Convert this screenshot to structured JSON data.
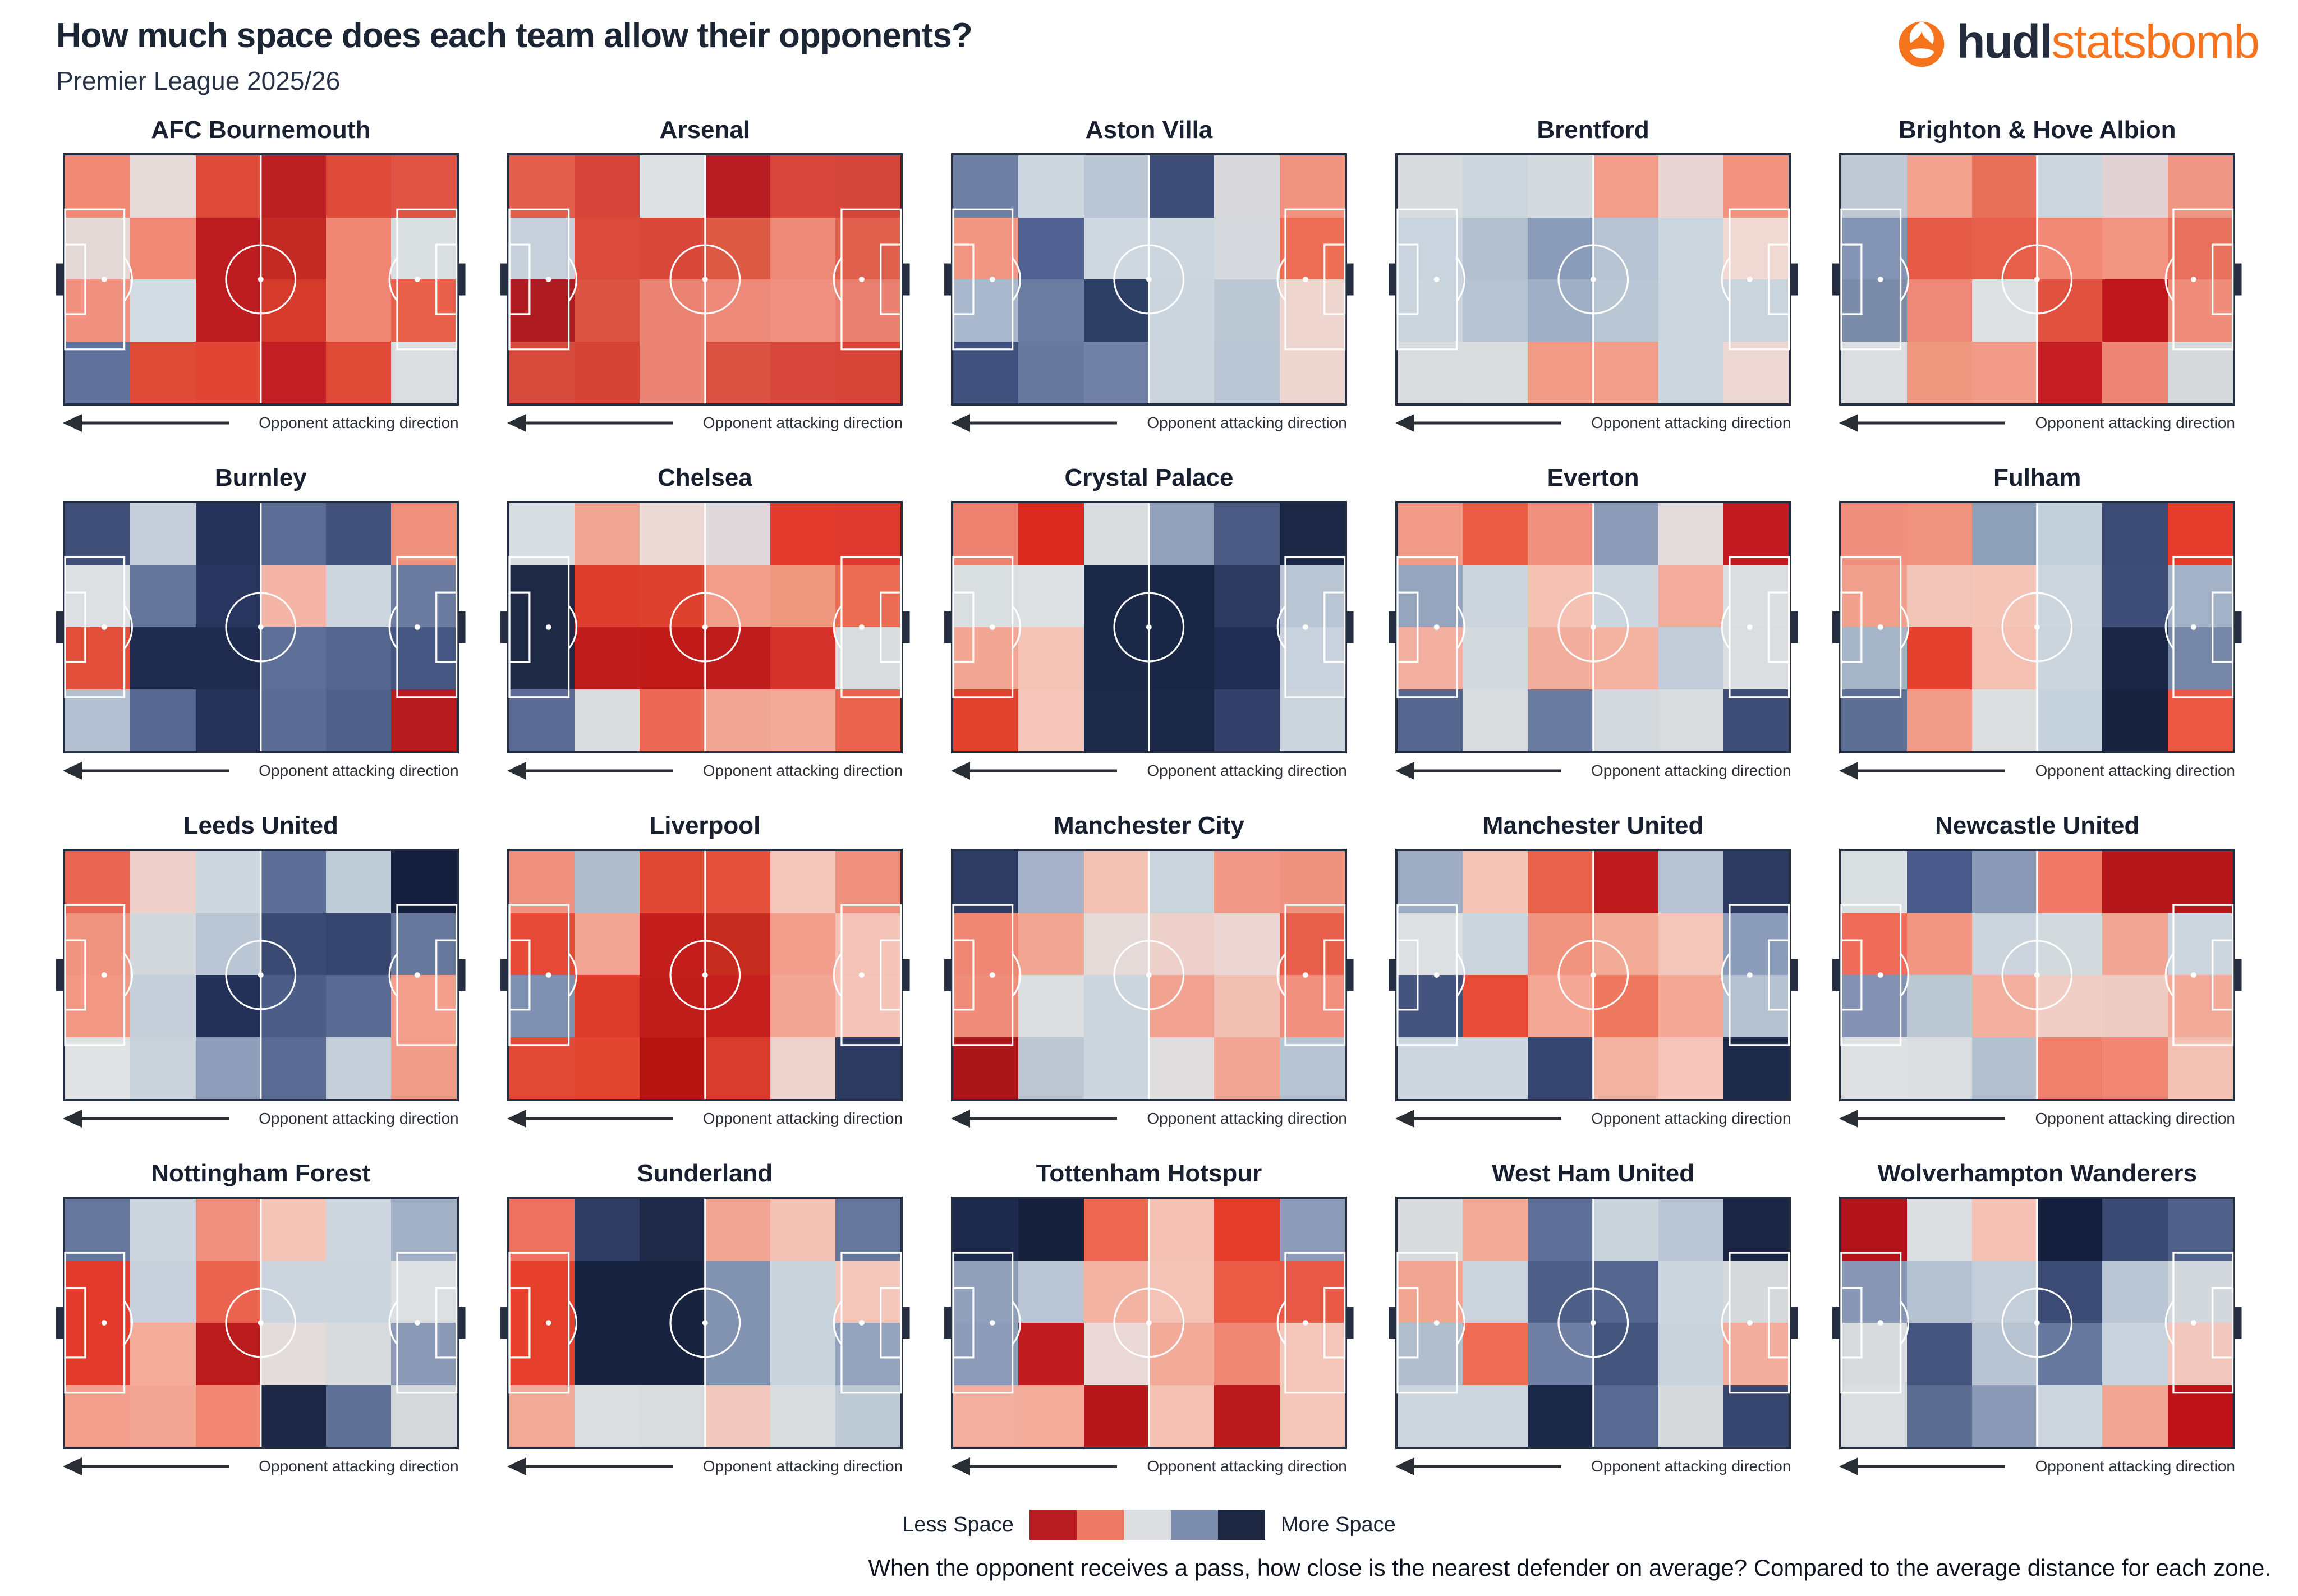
{
  "header": {
    "title": "How much space does each team allow their opponents?",
    "subtitle": "Premier League 2025/26"
  },
  "logo": {
    "hudl": "hudl",
    "statsbomb": "statsbomb",
    "orange": "#f4731c",
    "dark": "#232c3d"
  },
  "chart_data": {
    "type": "heatmap",
    "title": "How much space does each team allow their opponents?",
    "subtitle": "Premier League 2025/26",
    "note": "When the opponent receives a pass, how close is the nearest defender on average? Compared to the average distance for each zone.",
    "pitch_label": "Opponent attacking direction",
    "grid_shape": {
      "cols": 6,
      "rows": 4
    },
    "colorscale": {
      "less_label": "Less Space",
      "more_label": "More Space",
      "colors": [
        "#b81c22",
        "#ee7a66",
        "#dcdee1",
        "#7b8cad",
        "#1e2742"
      ]
    },
    "teams": [
      {
        "name": "AFC Bournemouth",
        "grid": [
          [
            "#f08875",
            "#e6dad8",
            "#dd4a38",
            "#bd2023",
            "#dd4a38",
            "#e05445"
          ],
          [
            "#e4d8d6",
            "#f08875",
            "#bd1d20",
            "#c32a24",
            "#ef8573",
            "#d9dee1"
          ],
          [
            "#f19180",
            "#d3dce2",
            "#bd1d20",
            "#d63a2b",
            "#ef8573",
            "#e8604a"
          ],
          [
            "#60719b",
            "#e04b38",
            "#df4532",
            "#c32026",
            "#e04b38",
            "#dcdfe2"
          ]
        ]
      },
      {
        "name": "Arsenal",
        "grid": [
          [
            "#e45f4b",
            "#d8453a",
            "#dde1e4",
            "#b81d24",
            "#d8473b",
            "#d4463c"
          ],
          [
            "#c7d1dc",
            "#da4b3b",
            "#d8473a",
            "#dd5a45",
            "#ed8977",
            "#e0604d"
          ],
          [
            "#ae1c22",
            "#dd5443",
            "#ea8271",
            "#ed8a79",
            "#f09081",
            "#ea8170"
          ],
          [
            "#d64a3c",
            "#d54335",
            "#ea8374",
            "#dc5242",
            "#d8473b",
            "#d64538"
          ]
        ]
      },
      {
        "name": "Aston Villa",
        "grid": [
          [
            "#6e80a4",
            "#cdd7df",
            "#bac6d4",
            "#3d4d78",
            "#d9d9dc",
            "#f09381"
          ],
          [
            "#f29684",
            "#516192",
            "#cfd8e0",
            "#ccd6df",
            "#d6d9dd",
            "#ee6e55"
          ],
          [
            "#a9b8cc",
            "#6b7da1",
            "#2e3f66",
            "#cbd5de",
            "#bcc8d4",
            "#eed5cf"
          ],
          [
            "#42527f",
            "#66789d",
            "#7081a5",
            "#ccd5de",
            "#b9c5d3",
            "#eed6d0"
          ]
        ]
      },
      {
        "name": "Brentford",
        "grid": [
          [
            "#d7dbde",
            "#cbd6df",
            "#d4dade",
            "#f29d89",
            "#e8d4d3",
            "#f2937f"
          ],
          [
            "#c9d4de",
            "#b3c0d0",
            "#8b9cba",
            "#b6c3d2",
            "#ccd6de",
            "#f0d8d3"
          ],
          [
            "#cbd5de",
            "#b6c3d2",
            "#9fafc6",
            "#b9c6d4",
            "#ccd6df",
            "#c9d4dd"
          ],
          [
            "#d8dcdf",
            "#dadcde",
            "#f19b87",
            "#f29e8b",
            "#ccd6de",
            "#edd7d3"
          ]
        ]
      },
      {
        "name": "Brighton & Hove Albion",
        "grid": [
          [
            "#c0cad7",
            "#f2a491",
            "#e8705a",
            "#ccd6de",
            "#e2d2d4",
            "#ef9583"
          ],
          [
            "#8494b4",
            "#e55b47",
            "#e55f4b",
            "#f08a76",
            "#f19582",
            "#e7715c"
          ],
          [
            "#7b8cab",
            "#ee8878",
            "#dde0e3",
            "#e0523f",
            "#c0171d",
            "#ef8b79"
          ],
          [
            "#dcdee1",
            "#f0977f",
            "#f09a87",
            "#c51f24",
            "#ee8574",
            "#d7dadd"
          ]
        ]
      },
      {
        "name": "Burnley",
        "grid": [
          [
            "#3f4f78",
            "#c5cfd9",
            "#26345b",
            "#5d6e96",
            "#42527b",
            "#f0917e"
          ],
          [
            "#dce0e3",
            "#64759b",
            "#28365f",
            "#f4b5a6",
            "#cdd6de",
            "#6b7ca0"
          ],
          [
            "#e14f3b",
            "#1f2c50",
            "#1f2c50",
            "#5e7097",
            "#54658e",
            "#455683"
          ],
          [
            "#b2c0d1",
            "#576890",
            "#26345c",
            "#5c6d95",
            "#50618a",
            "#b71b1f"
          ]
        ]
      },
      {
        "name": "Chelsea",
        "grid": [
          [
            "#d8dde1",
            "#f2a794",
            "#ecd9d6",
            "#ded8da",
            "#e33b2b",
            "#e0392f"
          ],
          [
            "#1d2945",
            "#dd3d2c",
            "#de422f",
            "#f19d8a",
            "#f0987f",
            "#ec6b55"
          ],
          [
            "#1d2945",
            "#c01e1c",
            "#c01a19",
            "#bf1d1b",
            "#d4322a",
            "#d9dcdf"
          ],
          [
            "#5b6b96",
            "#dadde0",
            "#ea6854",
            "#f2a794",
            "#f3ab99",
            "#eb6450"
          ]
        ]
      },
      {
        "name": "Crystal Palace",
        "grid": [
          [
            "#ee8270",
            "#dc2a20",
            "#d8dcdf",
            "#92a2bd",
            "#4a5a82",
            "#1c2746"
          ],
          [
            "#d9dee1",
            "#dde0e2",
            "#1c2848",
            "#1a2645",
            "#2c3a5f",
            "#b9c5d3"
          ],
          [
            "#f2a795",
            "#f4c3b5",
            "#1c2848",
            "#1a2645",
            "#202d52",
            "#c8d2dc"
          ],
          [
            "#e2412e",
            "#f5c6b9",
            "#1d2949",
            "#1b2747",
            "#33416a",
            "#ccd5dd"
          ]
        ]
      },
      {
        "name": "Everton",
        "grid": [
          [
            "#f29a88",
            "#ea5b43",
            "#f0907e",
            "#8b9bb8",
            "#e2dadb",
            "#c21a20"
          ],
          [
            "#94a5bd",
            "#ccd5de",
            "#f4c1b3",
            "#cdd6de",
            "#f3ac9b",
            "#dcdfe1"
          ],
          [
            "#f3b0a0",
            "#d5dade",
            "#f3ad9c",
            "#f4b2a1",
            "#c2cdd9",
            "#dbdee0"
          ],
          [
            "#55668e",
            "#d8dcde",
            "#6b7ca1",
            "#d3d9dd",
            "#d9dcdf",
            "#3e4e77"
          ]
        ]
      },
      {
        "name": "Fulham",
        "grid": [
          [
            "#f08f7d",
            "#f0937f",
            "#8fa0ba",
            "#c3cfdb",
            "#3c4c77",
            "#e63c2b"
          ],
          [
            "#f2a08e",
            "#f2c4b8",
            "#f4c4b7",
            "#ccd6df",
            "#3d4d78",
            "#a3b2c7"
          ],
          [
            "#a6b4c8",
            "#e6402e",
            "#f4c0b2",
            "#cbd5de",
            "#1b2644",
            "#7687a8"
          ],
          [
            "#5e6f95",
            "#f09b88",
            "#dcdee0",
            "#c5d1dc",
            "#18233f",
            "#ea5844"
          ]
        ]
      },
      {
        "name": "Leeds United",
        "grid": [
          [
            "#e96752",
            "#eecfc9",
            "#ccd6de",
            "#5e6f97",
            "#bfcbd7",
            "#141f3d"
          ],
          [
            "#f0937f",
            "#d3d8dc",
            "#bac6d4",
            "#3a4a72",
            "#35456e",
            "#67789d"
          ],
          [
            "#f19784",
            "#c5cfda",
            "#233058",
            "#4c5d87",
            "#5a6b93",
            "#f3a08e"
          ],
          [
            "#e0e2e3",
            "#c8d2db",
            "#8d9dba",
            "#5b6c94",
            "#c3ced9",
            "#f19b89"
          ]
        ]
      },
      {
        "name": "Liverpool",
        "grid": [
          [
            "#f0907e",
            "#b0bdcd",
            "#e14834",
            "#e3503c",
            "#f4c7bc",
            "#f0917f"
          ],
          [
            "#e44a36",
            "#f2a593",
            "#c41e1c",
            "#c62b20",
            "#f19e8c",
            "#f3c3b7"
          ],
          [
            "#7f91b1",
            "#dd3b2a",
            "#c11d1b",
            "#c5201d",
            "#f2a795",
            "#f4c4b8"
          ],
          [
            "#e24936",
            "#e1452f",
            "#b61411",
            "#d93b2c",
            "#eed3cc",
            "#2c3a61"
          ]
        ]
      },
      {
        "name": "Manchester City",
        "grid": [
          [
            "#2e3c64",
            "#a4b1c6",
            "#f3c2b4",
            "#c9d4dd",
            "#f29886",
            "#f09280"
          ],
          [
            "#f08775",
            "#f2a593",
            "#e6dad8",
            "#eed0cb",
            "#ecd6d3",
            "#e75f4a"
          ],
          [
            "#f08c7a",
            "#dcdedf",
            "#cbd5dd",
            "#f2a290",
            "#f2c0b3",
            "#f1907e"
          ],
          [
            "#ab161b",
            "#bcc7d3",
            "#cad4dc",
            "#dfdddd",
            "#f3a593",
            "#b8c4d2"
          ]
        ]
      },
      {
        "name": "Manchester United",
        "grid": [
          [
            "#9fadc4",
            "#f4c3b5",
            "#e9604b",
            "#bc1a1d",
            "#b7c3d3",
            "#2c3a62"
          ],
          [
            "#dde0e2",
            "#ccd5de",
            "#f0947f",
            "#f2ab97",
            "#f4c6b9",
            "#8b9cba"
          ],
          [
            "#43537d",
            "#e64c38",
            "#f3a794",
            "#ef7960",
            "#f2a895",
            "#b4c1d0"
          ],
          [
            "#ccd6de",
            "#cdd6de",
            "#374671",
            "#f2b3a3",
            "#f4c5b8",
            "#1d2948"
          ]
        ]
      },
      {
        "name": "Newcastle United",
        "grid": [
          [
            "#dadfe1",
            "#49598a",
            "#8b9ab7",
            "#f07a67",
            "#b5161a",
            "#b5161a"
          ],
          [
            "#ee6b59",
            "#f19583",
            "#ccd5de",
            "#d3dade",
            "#f2a593",
            "#ccd6df"
          ],
          [
            "#8392b2",
            "#bcc8d4",
            "#f2af9e",
            "#f0cdc5",
            "#efccc3",
            "#f3ab99"
          ],
          [
            "#dee0e2",
            "#dbdee0",
            "#b3c0cf",
            "#f07f6c",
            "#f08673",
            "#f2c1b4"
          ]
        ]
      },
      {
        "name": "Nottingham Forest",
        "grid": [
          [
            "#66779d",
            "#ccd5de",
            "#f0907e",
            "#f3c3b6",
            "#cdd6de",
            "#a3b1c6"
          ],
          [
            "#e33b2b",
            "#c6d1db",
            "#ea6450",
            "#ccd5dd",
            "#cbd5de",
            "#dde0e2"
          ],
          [
            "#e33b2b",
            "#f3ab9a",
            "#ba1c1e",
            "#e3dcdb",
            "#d8dbdd",
            "#8a99b5"
          ],
          [
            "#f3a08e",
            "#f2a693",
            "#f08571",
            "#1b2745",
            "#5f7096",
            "#d7dadd"
          ]
        ]
      },
      {
        "name": "Sunderland",
        "grid": [
          [
            "#ee7160",
            "#2e3c64",
            "#1d2947",
            "#f2a693",
            "#f4c2b4",
            "#66779e"
          ],
          [
            "#e6402d",
            "#18243f",
            "#18243f",
            "#8292b1",
            "#c9d3dc",
            "#f2c6bb"
          ],
          [
            "#e6402d",
            "#18243f",
            "#18243f",
            "#8292b1",
            "#c9d3dc",
            "#93a3bd"
          ],
          [
            "#f2ab99",
            "#dcdfe1",
            "#d8dcdf",
            "#f1c7bd",
            "#dadddf",
            "#becad6"
          ]
        ]
      },
      {
        "name": "Tottenham Hotspur",
        "grid": [
          [
            "#1e2a4c",
            "#16203c",
            "#ee6852",
            "#f3c0b2",
            "#e63d2a",
            "#8c9cb8"
          ],
          [
            "#90a0bb",
            "#b9c5d3",
            "#f3b3a3",
            "#f5c3b5",
            "#ea5b45",
            "#e85847"
          ],
          [
            "#8b9bb8",
            "#c11d20",
            "#e9d8d6",
            "#f2ab99",
            "#ef8673",
            "#f4c5b9"
          ],
          [
            "#f2af9e",
            "#f3ab9a",
            "#b5161a",
            "#f5c1b2",
            "#ba191c",
            "#f4c6ba"
          ]
        ]
      },
      {
        "name": "West Ham United",
        "grid": [
          [
            "#d7dbde",
            "#f3aa98",
            "#5f7098",
            "#c9d3dc",
            "#bac6d4",
            "#1a2644"
          ],
          [
            "#f3a593",
            "#ccd5de",
            "#4d5e87",
            "#56678f",
            "#cbd5de",
            "#d5d9dc"
          ],
          [
            "#b0becd",
            "#ee6b56",
            "#6f80a4",
            "#45567e",
            "#c9d3dc",
            "#f2ad9c"
          ],
          [
            "#ccd6de",
            "#cdd6de",
            "#1b2747",
            "#5a6b93",
            "#d6dadd",
            "#36466f"
          ]
        ]
      },
      {
        "name": "Wolverhampton Wanderers",
        "grid": [
          [
            "#b5131b",
            "#dbdfe1",
            "#f4c1b4",
            "#141f3e",
            "#3a4a73",
            "#4f6089"
          ],
          [
            "#8696b4",
            "#b4c1d0",
            "#c3ced9",
            "#3b4b75",
            "#bac6d3",
            "#d3d8dc"
          ],
          [
            "#d8dbde",
            "#44547e",
            "#b7c3d1",
            "#67789e",
            "#c8d2dc",
            "#f2c7bd"
          ],
          [
            "#dcdfe1",
            "#5c6d94",
            "#8b9bb7",
            "#cdd6de",
            "#f2a593",
            "#bc1217"
          ]
        ]
      }
    ]
  }
}
